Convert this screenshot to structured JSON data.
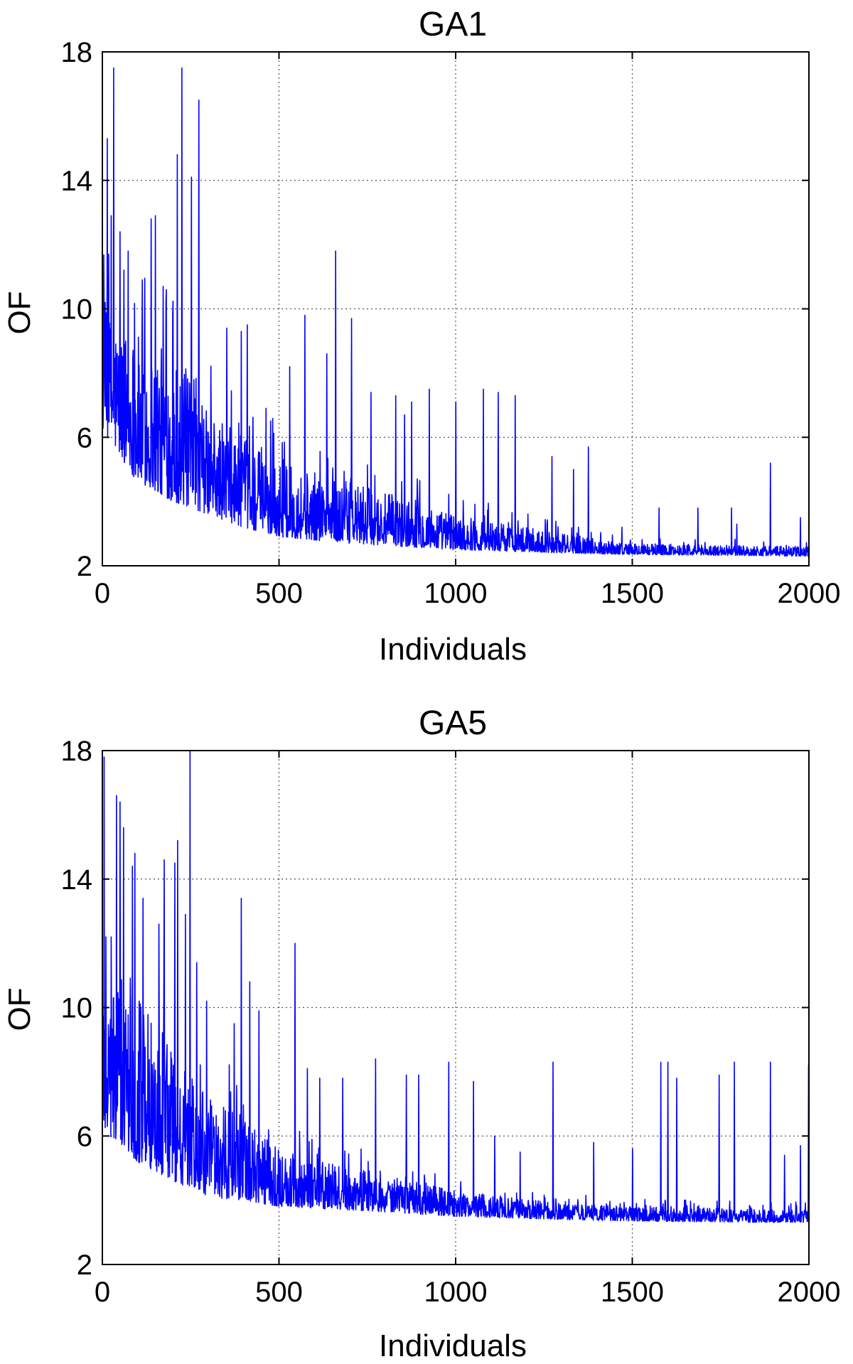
{
  "chart_data": [
    {
      "type": "line",
      "title": "GA1",
      "xlabel": "Individuals",
      "ylabel": "OF",
      "xlim": [
        0,
        2000
      ],
      "ylim": [
        2,
        18
      ],
      "xticks": [
        "0",
        "500",
        "1000",
        "1500",
        "2000"
      ],
      "yticks": [
        "2",
        "6",
        "10",
        "14",
        "18"
      ],
      "grid": true,
      "series_color": "#0000ff",
      "n_points": 2000,
      "baseline": [
        [
          0,
          6.2
        ],
        [
          100,
          4.6
        ],
        [
          200,
          4.0
        ],
        [
          300,
          3.6
        ],
        [
          400,
          3.2
        ],
        [
          500,
          2.9
        ],
        [
          700,
          2.7
        ],
        [
          1000,
          2.5
        ],
        [
          1300,
          2.4
        ],
        [
          1500,
          2.35
        ],
        [
          2000,
          2.3
        ]
      ],
      "upper_envelope": [
        [
          0,
          10.0
        ],
        [
          100,
          9.2
        ],
        [
          200,
          8.6
        ],
        [
          300,
          6.8
        ],
        [
          400,
          6.0
        ],
        [
          500,
          5.2
        ],
        [
          700,
          4.6
        ],
        [
          1000,
          3.6
        ],
        [
          1300,
          3.0
        ],
        [
          1500,
          2.7
        ],
        [
          2000,
          2.6
        ]
      ],
      "peaks": [
        [
          8,
          10.2
        ],
        [
          14,
          15.3
        ],
        [
          25,
          12.9
        ],
        [
          32,
          17.5
        ],
        [
          50,
          12.4
        ],
        [
          73,
          11.8
        ],
        [
          113,
          10.9
        ],
        [
          138,
          12.8
        ],
        [
          150,
          12.9
        ],
        [
          172,
          10.7
        ],
        [
          212,
          14.8
        ],
        [
          225,
          17.5
        ],
        [
          252,
          14.1
        ],
        [
          273,
          16.5
        ],
        [
          352,
          9.4
        ],
        [
          393,
          9.3
        ],
        [
          410,
          9.5
        ],
        [
          530,
          8.2
        ],
        [
          573,
          9.8
        ],
        [
          635,
          8.6
        ],
        [
          660,
          11.8
        ],
        [
          705,
          9.7
        ],
        [
          760,
          7.4
        ],
        [
          830,
          7.3
        ],
        [
          855,
          6.7
        ],
        [
          875,
          7.1
        ],
        [
          925,
          7.5
        ],
        [
          1000,
          7.1
        ],
        [
          1078,
          7.5
        ],
        [
          1120,
          7.4
        ],
        [
          1168,
          7.3
        ],
        [
          1272,
          5.4
        ],
        [
          1333,
          5.0
        ],
        [
          1375,
          5.7
        ],
        [
          1470,
          3.2
        ],
        [
          1575,
          3.8
        ],
        [
          1685,
          3.8
        ],
        [
          1780,
          3.8
        ],
        [
          1795,
          3.3
        ],
        [
          1890,
          5.2
        ],
        [
          1975,
          3.5
        ]
      ]
    },
    {
      "type": "line",
      "title": "GA5",
      "xlabel": "Individuals",
      "ylabel": "OF",
      "xlim": [
        0,
        2000
      ],
      "ylim": [
        2,
        18
      ],
      "xticks": [
        "0",
        "500",
        "1000",
        "1500",
        "2000"
      ],
      "yticks": [
        "2",
        "6",
        "10",
        "14",
        "18"
      ],
      "grid": true,
      "series_color": "#0000ff",
      "n_points": 2000,
      "baseline": [
        [
          0,
          6.2
        ],
        [
          100,
          5.2
        ],
        [
          200,
          4.6
        ],
        [
          300,
          4.1
        ],
        [
          400,
          4.0
        ],
        [
          500,
          3.8
        ],
        [
          700,
          3.7
        ],
        [
          1000,
          3.5
        ],
        [
          1300,
          3.4
        ],
        [
          1500,
          3.35
        ],
        [
          2000,
          3.3
        ]
      ],
      "upper_envelope": [
        [
          0,
          11.5
        ],
        [
          100,
          10.5
        ],
        [
          200,
          8.6
        ],
        [
          300,
          7.2
        ],
        [
          400,
          6.6
        ],
        [
          500,
          5.6
        ],
        [
          700,
          5.0
        ],
        [
          1000,
          4.3
        ],
        [
          1300,
          3.9
        ],
        [
          1500,
          3.8
        ],
        [
          2000,
          3.7
        ]
      ],
      "peaks": [
        [
          5,
          17.8
        ],
        [
          10,
          12.2
        ],
        [
          25,
          12.2
        ],
        [
          40,
          16.6
        ],
        [
          50,
          16.4
        ],
        [
          60,
          15.6
        ],
        [
          85,
          14.4
        ],
        [
          92,
          14.8
        ],
        [
          115,
          13.4
        ],
        [
          160,
          12.6
        ],
        [
          175,
          14.6
        ],
        [
          205,
          14.5
        ],
        [
          213,
          15.2
        ],
        [
          235,
          12.9
        ],
        [
          248,
          18.0
        ],
        [
          267,
          11.4
        ],
        [
          295,
          10.2
        ],
        [
          373,
          9.5
        ],
        [
          393,
          13.4
        ],
        [
          417,
          10.8
        ],
        [
          443,
          9.9
        ],
        [
          545,
          12.0
        ],
        [
          580,
          8.1
        ],
        [
          615,
          7.8
        ],
        [
          680,
          7.8
        ],
        [
          773,
          8.4
        ],
        [
          860,
          7.9
        ],
        [
          895,
          7.9
        ],
        [
          980,
          8.3
        ],
        [
          1050,
          7.7
        ],
        [
          1110,
          6.0
        ],
        [
          1182,
          5.5
        ],
        [
          1275,
          8.3
        ],
        [
          1390,
          5.8
        ],
        [
          1500,
          5.6
        ],
        [
          1580,
          8.3
        ],
        [
          1600,
          8.3
        ],
        [
          1625,
          7.8
        ],
        [
          1745,
          7.9
        ],
        [
          1788,
          8.3
        ],
        [
          1890,
          8.3
        ],
        [
          1930,
          5.4
        ],
        [
          1975,
          5.7
        ],
        [
          1998,
          8.2
        ]
      ]
    }
  ]
}
